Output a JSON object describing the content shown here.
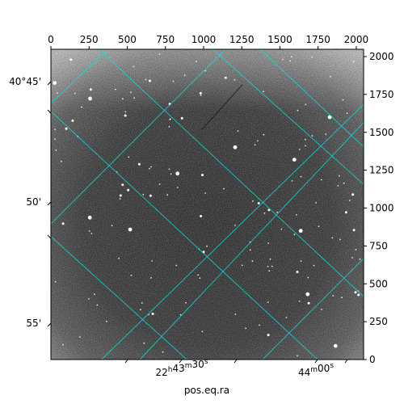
{
  "figure": {
    "type": "astronomical-image",
    "colormap": "gray",
    "grid_color": "#00e5e5",
    "frame_color": "#000000",
    "pixel_range": [
      0,
      2048
    ]
  },
  "axes": {
    "top_ticks": [
      "0",
      "250",
      "500",
      "750",
      "1000",
      "1250",
      "1500",
      "1750",
      "2000"
    ],
    "top_tick_values": [
      0,
      250,
      500,
      750,
      1000,
      1250,
      1500,
      1750,
      2000
    ],
    "right_ticks": [
      "0",
      "250",
      "500",
      "750",
      "1000",
      "1250",
      "1500",
      "1750",
      "2000"
    ],
    "right_tick_values": [
      0,
      250,
      500,
      750,
      1000,
      1250,
      1500,
      1750,
      2000
    ],
    "left_ticks": [
      {
        "label": "40°45'"
      },
      {
        "label": "50'"
      },
      {
        "label": "55'"
      }
    ],
    "bottom_ticks": [
      {
        "h": "22",
        "m": "43",
        "s": "30",
        "pre": "22",
        "mid": "43",
        "post": "30"
      },
      {
        "h": "",
        "m": "44",
        "s": "00",
        "pre": "",
        "mid": "44",
        "post": "00"
      }
    ],
    "xlabel": "pos.eq.ra"
  }
}
